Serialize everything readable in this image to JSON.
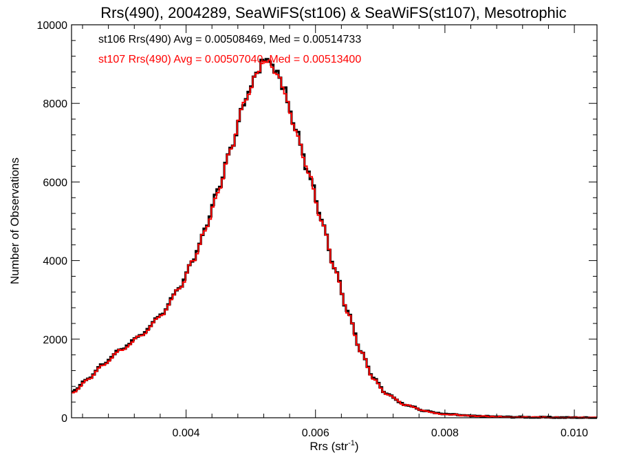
{
  "chart_data": {
    "type": "line",
    "title": "Rrs(490), 2004289, SeaWiFS(st106) & SeaWiFS(st107), Mesotrophic",
    "xlabel": "Rrs (str",
    "xlabel_sup": "-1",
    "xlabel_tail": ")",
    "ylabel": "Number of Observations",
    "xlim": [
      0.00223,
      0.01035
    ],
    "ylim": [
      0,
      10000
    ],
    "x_ticks": [
      0.004,
      0.006,
      0.008,
      0.01
    ],
    "x_tick_labels": [
      "0.004",
      "0.006",
      "0.008",
      "0.010"
    ],
    "y_ticks": [
      0,
      2000,
      4000,
      6000,
      8000,
      10000
    ],
    "y_tick_labels": [
      "0",
      "2000",
      "4000",
      "6000",
      "8000",
      "10000"
    ],
    "step": true,
    "bin_width": 4e-05,
    "annotations": [
      {
        "text": "st106 Rrs(490) Avg = 0.00508469, Med = 0.00514733",
        "color": "#000000"
      },
      {
        "text": "st107 Rrs(490) Avg = 0.00507040, Med = 0.00513400",
        "color": "#ff0000"
      }
    ],
    "series": [
      {
        "name": "st106",
        "color": "#000000",
        "points": [
          [
            0.00223,
            650
          ],
          [
            0.0025,
            1000
          ],
          [
            0.0027,
            1350
          ],
          [
            0.003,
            1750
          ],
          [
            0.0033,
            2100
          ],
          [
            0.0036,
            2600
          ],
          [
            0.0039,
            3300
          ],
          [
            0.0041,
            4000
          ],
          [
            0.0043,
            4800
          ],
          [
            0.0045,
            5800
          ],
          [
            0.0047,
            6900
          ],
          [
            0.0049,
            8000
          ],
          [
            0.0051,
            8800
          ],
          [
            0.0052,
            9100
          ],
          [
            0.0053,
            9050
          ],
          [
            0.0054,
            8800
          ],
          [
            0.0055,
            8400
          ],
          [
            0.0057,
            7300
          ],
          [
            0.0059,
            6200
          ],
          [
            0.0061,
            5000
          ],
          [
            0.0063,
            3800
          ],
          [
            0.0065,
            2700
          ],
          [
            0.0067,
            1700
          ],
          [
            0.0069,
            1000
          ],
          [
            0.0071,
            600
          ],
          [
            0.0074,
            330
          ],
          [
            0.0077,
            170
          ],
          [
            0.008,
            90
          ],
          [
            0.0085,
            40
          ],
          [
            0.009,
            20
          ],
          [
            0.0095,
            10
          ],
          [
            0.01,
            5
          ],
          [
            0.01035,
            2
          ]
        ]
      },
      {
        "name": "st107",
        "color": "#ff0000",
        "points": [
          [
            0.00223,
            620
          ],
          [
            0.0025,
            980
          ],
          [
            0.0027,
            1330
          ],
          [
            0.003,
            1730
          ],
          [
            0.0033,
            2080
          ],
          [
            0.0036,
            2580
          ],
          [
            0.0039,
            3280
          ],
          [
            0.0041,
            3980
          ],
          [
            0.0043,
            4780
          ],
          [
            0.0045,
            5780
          ],
          [
            0.0047,
            6880
          ],
          [
            0.0049,
            7980
          ],
          [
            0.0051,
            8780
          ],
          [
            0.0052,
            9080
          ],
          [
            0.0053,
            9030
          ],
          [
            0.0054,
            8780
          ],
          [
            0.0055,
            8380
          ],
          [
            0.0057,
            7280
          ],
          [
            0.0059,
            6180
          ],
          [
            0.0061,
            4980
          ],
          [
            0.0063,
            3780
          ],
          [
            0.0065,
            2680
          ],
          [
            0.0067,
            1690
          ],
          [
            0.0069,
            990
          ],
          [
            0.0071,
            590
          ],
          [
            0.0074,
            320
          ],
          [
            0.0077,
            165
          ],
          [
            0.008,
            88
          ],
          [
            0.0085,
            38
          ],
          [
            0.009,
            19
          ],
          [
            0.0095,
            9
          ],
          [
            0.01,
            4
          ],
          [
            0.01035,
            2
          ]
        ]
      }
    ]
  }
}
